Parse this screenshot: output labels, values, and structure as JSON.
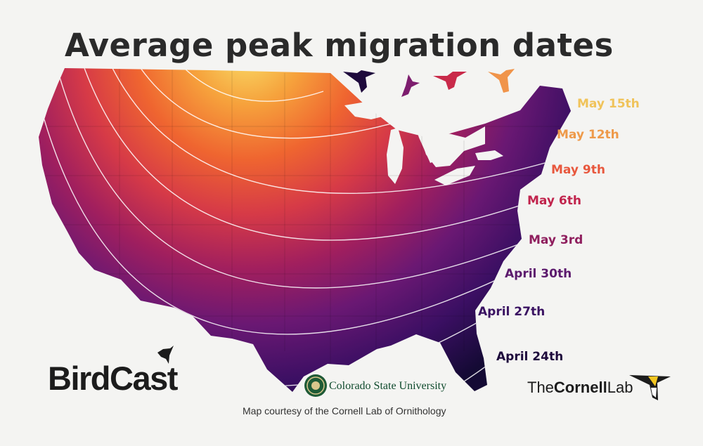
{
  "title": "Average peak migration dates",
  "isolines": [
    {
      "label": "May 15th",
      "color": "#f0c35a"
    },
    {
      "label": "May 12th",
      "color": "#ee9a4a"
    },
    {
      "label": "May 9th",
      "color": "#e8583e"
    },
    {
      "label": "May 6th",
      "color": "#c1244d"
    },
    {
      "label": "May 3rd",
      "color": "#8f1f5e"
    },
    {
      "label": "April 30th",
      "color": "#5c1a6d"
    },
    {
      "label": "April 27th",
      "color": "#3a1262"
    },
    {
      "label": "April 24th",
      "color": "#1e0a3c"
    }
  ],
  "gradient_colors": [
    "#f9e06a",
    "#f6a23c",
    "#ef6530",
    "#d63a47",
    "#a11f5e",
    "#6a1873",
    "#3b0f63",
    "#140a34"
  ],
  "bird_colors": [
    "#1e0a3c",
    "#7d1d6e",
    "#c92a4a",
    "#f0944a"
  ],
  "logos": {
    "birdcast": "BirdCast",
    "csu": "Colorado State University",
    "cornell_the": "The",
    "cornell_bold": "Cornell",
    "cornell_lab": "Lab"
  },
  "credit": "Map courtesy of the Cornell Lab of Ornithology"
}
